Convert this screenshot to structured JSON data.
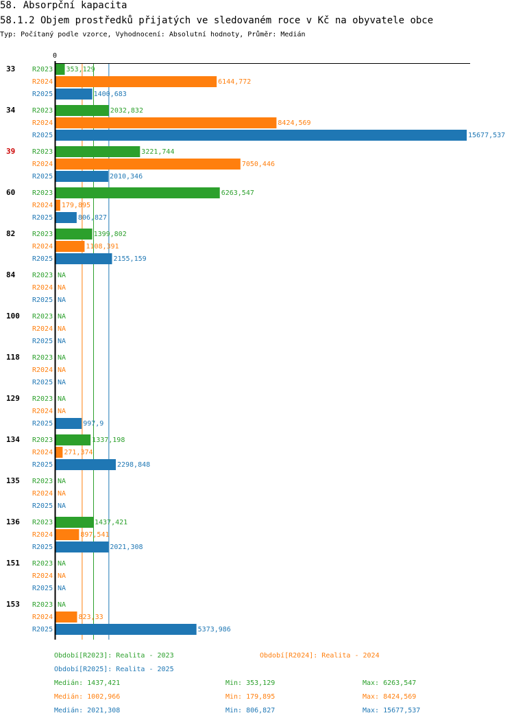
{
  "header": {
    "title": "58. Absorpční kapacita",
    "subtitle": "58.1.2 Objem prostředků přijatých ve sledovaném roce v Kč na obyvatele obce",
    "type_line": "Typ: Počítaný podle vzorce, Vyhodnocení: Absolutní hodnoty, Průměr: Medián"
  },
  "chart_data": {
    "type": "bar",
    "orientation": "horizontal",
    "title": "58.1.2 Objem prostředků přijatých ve sledovaném roce v Kč na obyvatele obce",
    "axis_zero_label": "0",
    "xlim": [
      0,
      15677.537
    ],
    "na_label": "NA",
    "categories": [
      "33",
      "34",
      "39",
      "60",
      "82",
      "84",
      "100",
      "118",
      "129",
      "134",
      "135",
      "136",
      "151",
      "153"
    ],
    "highlight_category": "39",
    "highlight_color": "#cc0000",
    "series": [
      {
        "name": "R2023",
        "color": "#2ca02c",
        "values": [
          353.129,
          2032.832,
          3221.744,
          6263.547,
          1399.802,
          null,
          null,
          null,
          null,
          1337.198,
          null,
          1437.421,
          null,
          null
        ],
        "labels": [
          "353,129",
          "2032,832",
          "3221,744",
          "6263,547",
          "1399,802",
          "NA",
          "NA",
          "NA",
          "NA",
          "1337,198",
          "NA",
          "1437,421",
          "NA",
          "NA"
        ],
        "median": 1437.421
      },
      {
        "name": "R2024",
        "color": "#ff7f0e",
        "values": [
          6144.772,
          8424.569,
          7050.446,
          179.895,
          1108.391,
          null,
          null,
          null,
          null,
          271.374,
          null,
          897.541,
          null,
          823.33
        ],
        "labels": [
          "6144,772",
          "8424,569",
          "7050,446",
          "179,895",
          "1108,391",
          "NA",
          "NA",
          "NA",
          "NA",
          "271,374",
          "NA",
          "897,541",
          "NA",
          "823,33"
        ],
        "median": 1002.966
      },
      {
        "name": "R2025",
        "color": "#1f77b4",
        "values": [
          1400.683,
          15677.537,
          2010.346,
          806.827,
          2155.159,
          null,
          null,
          null,
          997.9,
          2298.848,
          null,
          2021.308,
          null,
          5373.986
        ],
        "labels": [
          "1400,683",
          "15677,537",
          "2010,346",
          "806,827",
          "2155,159",
          "NA",
          "NA",
          "NA",
          "997,9",
          "2298,848",
          "NA",
          "2021,308",
          "NA",
          "5373,986"
        ],
        "median": 2021.308
      }
    ],
    "legend": [
      {
        "text": "Období[R2023]: Realita - 2023",
        "color": "#2ca02c"
      },
      {
        "text": "Období[R2024]: Realita - 2024",
        "color": "#ff7f0e"
      },
      {
        "text": "Období[R2025]: Realita - 2025",
        "color": "#1f77b4"
      }
    ],
    "stats": [
      {
        "color": "#2ca02c",
        "median": "Medián: 1437,421",
        "min": "Min: 353,129",
        "max": "Max: 6263,547"
      },
      {
        "color": "#ff7f0e",
        "median": "Medián: 1002,966",
        "min": "Min: 179,895",
        "max": "Max: 8424,569"
      },
      {
        "color": "#1f77b4",
        "median": "Medián: 2021,308",
        "min": "Min: 806,827",
        "max": "Max: 15677,537"
      }
    ]
  }
}
